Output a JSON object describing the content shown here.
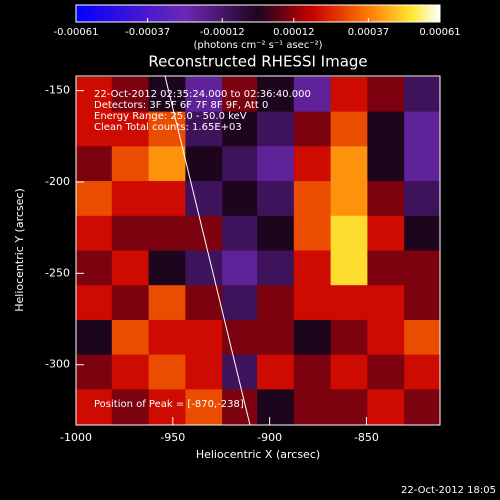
{
  "chart_data": {
    "type": "heatmap",
    "title": "Reconstructed RHESSI Image",
    "colorbar_label": "(photons cm⁻² s⁻¹ asec⁻²)",
    "colorbar_lim": [
      -0.00061,
      0.00061
    ],
    "colorbar_ticks": [
      -0.00061,
      -0.00037,
      -0.00012,
      0.00012,
      0.00037,
      0.00061
    ],
    "x_label": "Heliocentric X (arcsec)",
    "y_label": "Heliocentric Y (arcsec)",
    "xlim": [
      -1000,
      -812
    ],
    "ylim": [
      -333,
      -142
    ],
    "xticks": [
      -1000,
      -950,
      -900,
      -850
    ],
    "yticks": [
      -150,
      -200,
      -250,
      -300
    ],
    "annotations": [
      "22-Oct-2012 02:35:24.000 to 02:36:40.000",
      "Detectors: 3F 5F 6F 7F 8F 9F, Att 0",
      "Energy Range: 25.0 - 50.0 keV",
      "Clean    Total counts: 1.65E+03"
    ],
    "peak_label": "Position of Peak = [-870,-238]",
    "timestamp": "22-Oct-2012 18:05",
    "x": [
      -991,
      -972,
      -953,
      -934,
      -915,
      -897,
      -878,
      -859,
      -840,
      -821
    ],
    "y": [
      -152,
      -171,
      -190,
      -209,
      -228,
      -247,
      -266,
      -285,
      -304,
      -323
    ],
    "z": [
      [
        0.0002,
        0.0001,
        0.0,
        -0.0002,
        0.0001,
        0.0,
        -0.0002,
        0.0002,
        0.0001,
        -0.0001
      ],
      [
        0.0002,
        0.0002,
        0.0003,
        -0.0001,
        0.0,
        -0.0001,
        0.0001,
        0.0003,
        0.0,
        -0.0002
      ],
      [
        0.0001,
        0.0003,
        0.0004,
        0.0,
        -0.0001,
        -0.0002,
        0.0002,
        0.0004,
        0.0,
        -0.0002
      ],
      [
        0.0003,
        0.0002,
        0.0002,
        -0.0001,
        0.0,
        -0.0001,
        0.0003,
        0.0004,
        0.0001,
        -0.0001
      ],
      [
        0.0002,
        0.0001,
        0.0001,
        0.0001,
        -0.0001,
        0.0,
        0.0003,
        0.0005,
        0.0002,
        0.0
      ],
      [
        0.0001,
        0.0002,
        0.0,
        -0.0001,
        -0.0002,
        -0.0001,
        0.0002,
        0.0005,
        0.0001,
        0.0001
      ],
      [
        0.0002,
        0.0001,
        0.0003,
        0.0001,
        -0.0001,
        0.0001,
        0.0002,
        0.0002,
        0.0002,
        0.0001
      ],
      [
        0.0,
        0.0003,
        0.0002,
        0.0002,
        0.0001,
        0.0001,
        0.0,
        0.0001,
        0.0002,
        0.0003
      ],
      [
        0.0001,
        0.0002,
        0.0003,
        0.0002,
        -0.0001,
        0.0002,
        0.0001,
        0.0002,
        0.0001,
        0.0002
      ],
      [
        0.0002,
        0.0001,
        0.0002,
        0.0003,
        0.0001,
        0.0,
        0.0001,
        0.0001,
        0.0002,
        0.0001
      ]
    ]
  }
}
